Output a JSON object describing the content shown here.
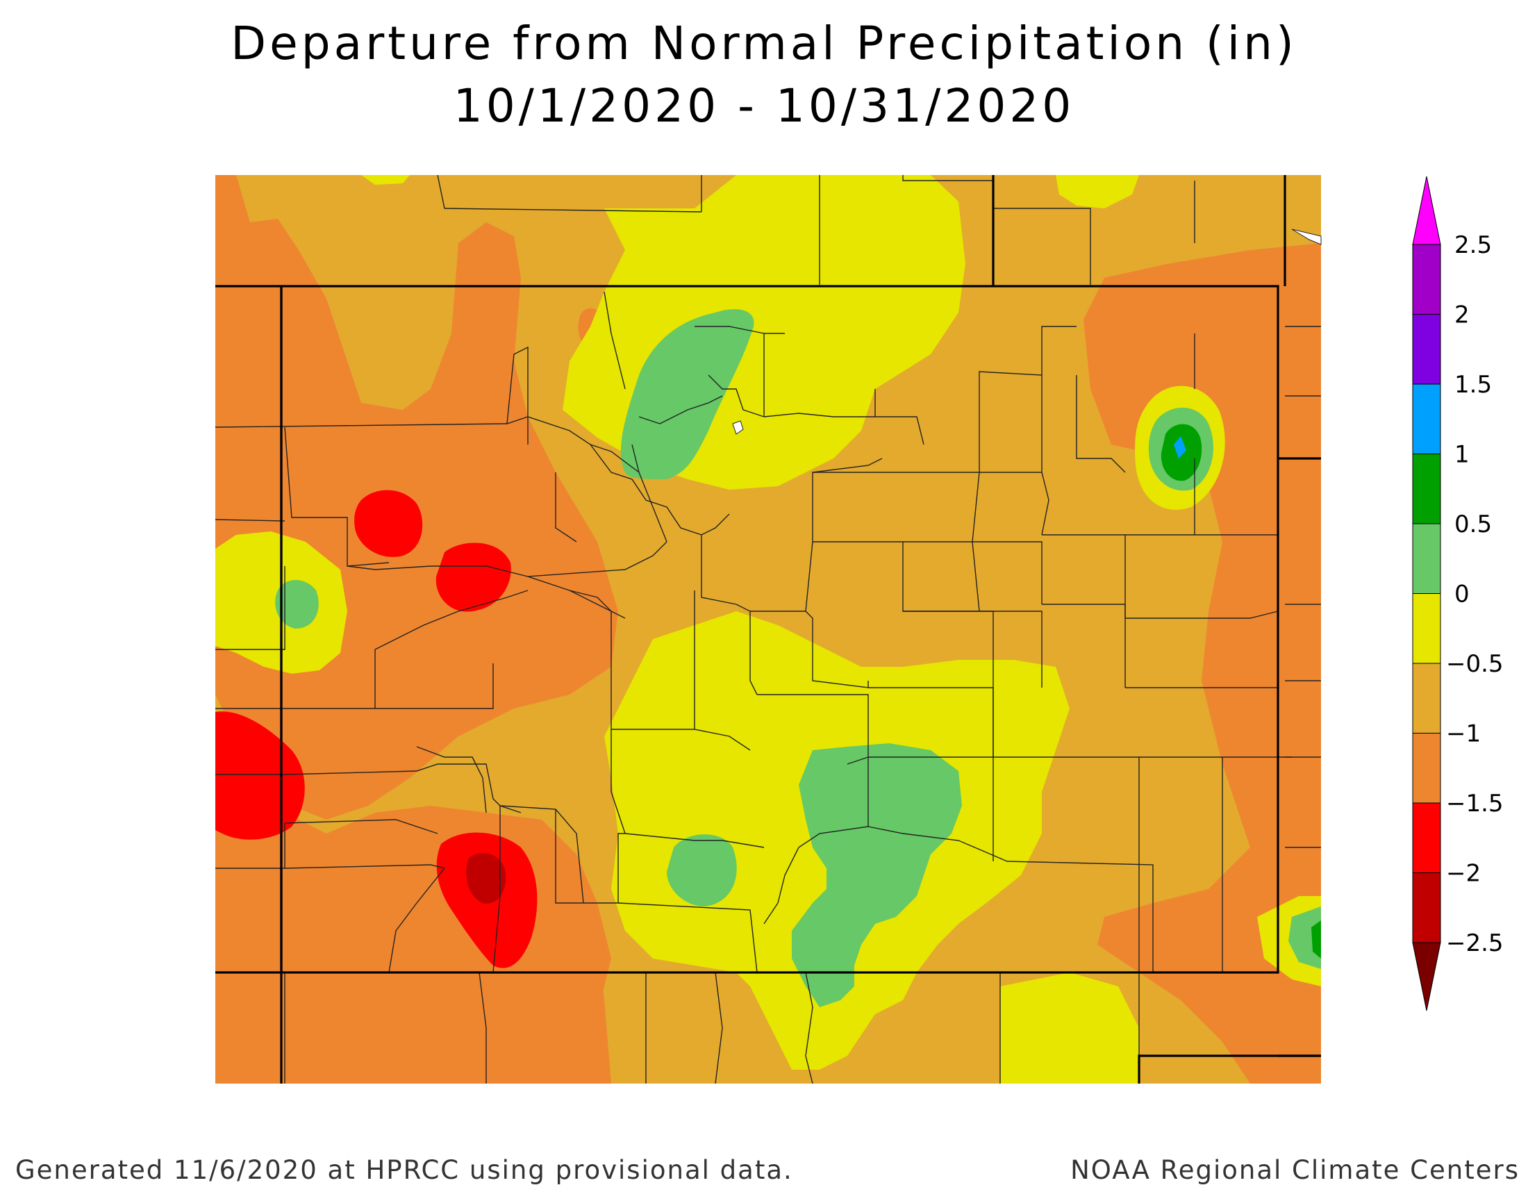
{
  "title": "Departure from Normal Precipitation (in)",
  "subtitle": "10/1/2020 - 10/31/2020",
  "footer": {
    "left": "Generated 11/6/2020 at HPRCC using provisional data.",
    "right": "NOAA Regional Climate Centers"
  },
  "colors": {
    "below_-2.5": "#7a0000",
    "-2.5_to_-2": "#c00000",
    "-2_to_-1.5": "#ff0000",
    "-1.5_to_-1": "#ee8630",
    "-1_to_-0.5": "#e3aa2e",
    "-0.5_to_0": "#e6e600",
    "0_to_0.5": "#66c866",
    "0.5_to_1": "#00a000",
    "1_to_1.5": "#00a0ff",
    "1.5_to_2": "#7f00e0",
    "2_to_2.5": "#a000c8",
    "above_2.5": "#ff00ff"
  },
  "legend": {
    "labels": [
      "2.5",
      "2",
      "1.5",
      "1",
      "0.5",
      "0",
      "−0.5",
      "−1",
      "−1.5",
      "−2",
      "−2.5"
    ],
    "bins": [
      "#a000c8",
      "#7f00e0",
      "#00a0ff",
      "#00a000",
      "#66c866",
      "#e6e600",
      "#e3aa2e",
      "#ee8630",
      "#ff0000",
      "#c00000"
    ],
    "top_arrow": "#ff00ff",
    "bottom_arrow": "#7a0000"
  }
}
